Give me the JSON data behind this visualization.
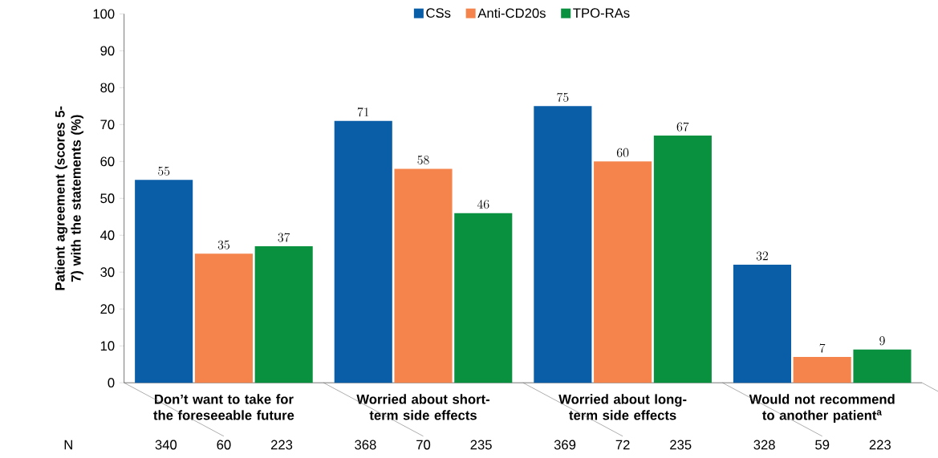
{
  "chart_data": {
    "type": "bar",
    "ylabel": "Patient agreement (scores 5-7) with the statements (%)",
    "categories": [
      "Don’t want to take for the foreseeable future",
      "Worried about short-term side effects",
      "Worried about long-term side effects",
      "Would not recommend to another patient$^{a}$"
    ],
    "series": [
      {
        "name": "CSs",
        "color": "#0a5ea8",
        "values": [
          55,
          71,
          75,
          32
        ]
      },
      {
        "name": "Anti-CD20s",
        "color": "#f5844c",
        "values": [
          35,
          58,
          60,
          7
        ]
      },
      {
        "name": "TPO-RAs",
        "color": "#0a9140",
        "values": [
          37,
          46,
          67,
          9
        ]
      }
    ],
    "ylim": [
      0,
      100
    ],
    "yticks": [
      0,
      10,
      20,
      30,
      40,
      50,
      60,
      70,
      80,
      90,
      100
    ],
    "data_labels": true,
    "legend": "top",
    "grid": false,
    "annotations": [
      "N",
      "340",
      "60",
      "223",
      "368",
      "70",
      "235",
      "369",
      "72",
      "235",
      "328",
      "59",
      "223"
    ]
  }
}
